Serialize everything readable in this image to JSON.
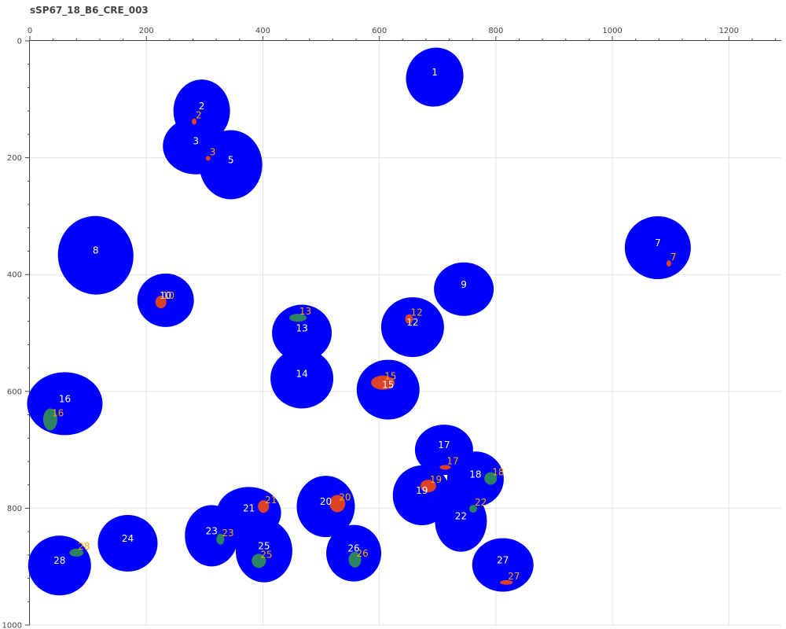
{
  "title": "sSP67_18_B6_CRE_003",
  "chart_data": {
    "type": "scatter",
    "title": "sSP67_18_B6_CRE_003",
    "xlim": [
      0,
      1290
    ],
    "ylim": [
      0,
      1000
    ],
    "y_axis_inverted": true,
    "x_axis_position": "top",
    "xticks": [
      0,
      200,
      400,
      600,
      800,
      1000,
      1200
    ],
    "yticks": [
      0,
      200,
      400,
      600,
      800,
      1000
    ],
    "grid": true,
    "colors": {
      "cell": "#0000ff",
      "cell_label": "#ffffff",
      "spot_red": "#e8461b",
      "spot_green": "#2e8b57",
      "spot_label": "#ffa500"
    },
    "cells": [
      {
        "label": "1",
        "x": 695,
        "y": 62,
        "rx": 36,
        "ry": 38,
        "angle": 30
      },
      {
        "label": "2",
        "x": 295,
        "y": 120,
        "rx": 36,
        "ry": 40,
        "angle": 0
      },
      {
        "label": "3",
        "x": 285,
        "y": 180,
        "rx": 42,
        "ry": 36,
        "angle": 0
      },
      {
        "label": "5",
        "x": 345,
        "y": 212,
        "rx": 40,
        "ry": 44,
        "angle": 0
      },
      {
        "label": "7",
        "x": 1078,
        "y": 354,
        "rx": 42,
        "ry": 40,
        "angle": 0
      },
      {
        "label": "8",
        "x": 113,
        "y": 367,
        "rx": 48,
        "ry": 50,
        "angle": -10
      },
      {
        "label": "9",
        "x": 745,
        "y": 425,
        "rx": 38,
        "ry": 34,
        "angle": 0
      },
      {
        "label": "10",
        "x": 233,
        "y": 444,
        "rx": 36,
        "ry": 34,
        "angle": 0
      },
      {
        "label": "12",
        "x": 657,
        "y": 490,
        "rx": 40,
        "ry": 38,
        "angle": 0
      },
      {
        "label": "13",
        "x": 467,
        "y": 500,
        "rx": 38,
        "ry": 36,
        "angle": 0
      },
      {
        "label": "14",
        "x": 467,
        "y": 578,
        "rx": 40,
        "ry": 38,
        "angle": 0
      },
      {
        "label": "15",
        "x": 615,
        "y": 597,
        "rx": 40,
        "ry": 38,
        "angle": 0
      },
      {
        "label": "16",
        "x": 60,
        "y": 621,
        "rx": 48,
        "ry": 40,
        "angle": 0
      },
      {
        "label": "17",
        "x": 711,
        "y": 700,
        "rx": 37,
        "ry": 32,
        "angle": 0
      },
      {
        "label": "18",
        "x": 765,
        "y": 750,
        "rx": 36,
        "ry": 35,
        "angle": 0
      },
      {
        "label": "19",
        "x": 673,
        "y": 778,
        "rx": 37,
        "ry": 38,
        "angle": 0
      },
      {
        "label": "20",
        "x": 508,
        "y": 797,
        "rx": 37,
        "ry": 39,
        "angle": 0
      },
      {
        "label": "21",
        "x": 376,
        "y": 808,
        "rx": 41,
        "ry": 33,
        "angle": 0
      },
      {
        "label": "22",
        "x": 740,
        "y": 822,
        "rx": 33,
        "ry": 39,
        "angle": 0
      },
      {
        "label": "23",
        "x": 312,
        "y": 847,
        "rx": 34,
        "ry": 39,
        "angle": 0
      },
      {
        "label": "24",
        "x": 168,
        "y": 860,
        "rx": 38,
        "ry": 36,
        "angle": 0
      },
      {
        "label": "25",
        "x": 402,
        "y": 873,
        "rx": 36,
        "ry": 40,
        "angle": 0
      },
      {
        "label": "26",
        "x": 556,
        "y": 877,
        "rx": 35,
        "ry": 36,
        "angle": 0
      },
      {
        "label": "27",
        "x": 812,
        "y": 897,
        "rx": 39,
        "ry": 34,
        "angle": 0
      },
      {
        "label": "28",
        "x": 51,
        "y": 898,
        "rx": 40,
        "ry": 38,
        "angle": 0
      }
    ],
    "spots": [
      {
        "label": "2",
        "x": 282,
        "y": 138,
        "color": "red",
        "rx": 3,
        "ry": 4,
        "label_color": "orange"
      },
      {
        "label": "3",
        "x": 306,
        "y": 201,
        "color": "red",
        "rx": 3,
        "ry": 3,
        "label_color": "orange"
      },
      {
        "label": "7",
        "x": 1097,
        "y": 381,
        "color": "red",
        "rx": 3,
        "ry": 4,
        "label_color": "orange"
      },
      {
        "label": "10",
        "x": 225,
        "y": 447,
        "color": "red",
        "rx": 7,
        "ry": 8,
        "label_color": "orange"
      },
      {
        "label": "12",
        "x": 651,
        "y": 476,
        "color": "red",
        "rx": 5,
        "ry": 6,
        "label_color": "orange"
      },
      {
        "label": "13",
        "x": 460,
        "y": 474,
        "color": "green",
        "rx": 11,
        "ry": 5,
        "label_color": "orange"
      },
      {
        "label": "15",
        "x": 606,
        "y": 585,
        "color": "red",
        "rx": 15,
        "ry": 9,
        "label_color": "orange"
      },
      {
        "label": "16",
        "x": 35,
        "y": 648,
        "color": "green",
        "rx": 9,
        "ry": 14,
        "label_color": "orange"
      },
      {
        "label": "17",
        "x": 713,
        "y": 730,
        "color": "red",
        "rx": 7,
        "ry": 3,
        "label_color": "orange"
      },
      {
        "label": "18",
        "x": 791,
        "y": 749,
        "color": "green",
        "rx": 8,
        "ry": 8,
        "label_color": "orange"
      },
      {
        "label": "19",
        "x": 684,
        "y": 762,
        "color": "red",
        "rx": 10,
        "ry": 8,
        "label_color": "orange"
      },
      {
        "label": "20",
        "x": 528,
        "y": 792,
        "color": "red",
        "rx": 10,
        "ry": 11,
        "label_color": "orange"
      },
      {
        "label": "21",
        "x": 401,
        "y": 797,
        "color": "red",
        "rx": 7,
        "ry": 8,
        "label_color": "orange"
      },
      {
        "label": "22",
        "x": 761,
        "y": 801,
        "color": "green",
        "rx": 5,
        "ry": 5,
        "label_color": "orange"
      },
      {
        "label": "23",
        "x": 327,
        "y": 853,
        "color": "green",
        "rx": 5,
        "ry": 7,
        "label_color": "orange"
      },
      {
        "label": "25",
        "x": 393,
        "y": 890,
        "color": "green",
        "rx": 9,
        "ry": 9,
        "label_color": "orange"
      },
      {
        "label": "26",
        "x": 558,
        "y": 888,
        "color": "green",
        "rx": 8,
        "ry": 10,
        "label_color": "orange"
      },
      {
        "label": "27",
        "x": 818,
        "y": 927,
        "color": "red",
        "rx": 8,
        "ry": 3,
        "label_color": "orange"
      },
      {
        "label": "28",
        "x": 80,
        "y": 876,
        "color": "green",
        "rx": 9,
        "ry": 5,
        "label_color": "orange"
      }
    ]
  }
}
